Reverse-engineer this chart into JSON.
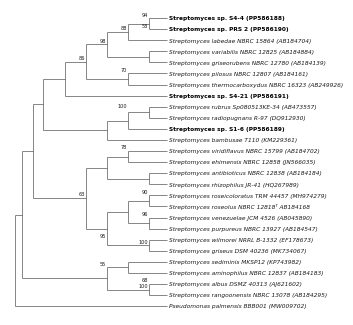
{
  "taxa": [
    {
      "name": "Streptomyces sp. S4-4 (PP586188)",
      "bold": true,
      "y": 1
    },
    {
      "name": "Streptomyces sp. PRS 2 (PP586190)",
      "bold": true,
      "y": 2
    },
    {
      "name": "Streptomyces labedae NBRC 15864 (AB184704)",
      "bold": false,
      "y": 3
    },
    {
      "name": "Streptomyces variabilis NBRC 12825 (AB184884)",
      "bold": false,
      "y": 4
    },
    {
      "name": "Streptomyces griseorubens NBRC 12780 (AB184139)",
      "bold": false,
      "y": 5
    },
    {
      "name": "Streptomyces pilosus NBRC 12807 (AB184161)",
      "bold": false,
      "y": 6
    },
    {
      "name": "Streptomyces thermocarboxydus NBRC 16323 (AB249926)",
      "bold": false,
      "y": 7
    },
    {
      "name": "Streptomyces sp. S4-21 (PP586191)",
      "bold": true,
      "y": 8
    },
    {
      "name": "Streptomyces rubrus Sp080513KE-34 (AB473557)",
      "bold": false,
      "y": 9
    },
    {
      "name": "Streptomyces radiopugnans R-97 (DQ912930)",
      "bold": false,
      "y": 10
    },
    {
      "name": "Streptomyces sp. S1-6 (PP586189)",
      "bold": true,
      "y": 11
    },
    {
      "name": "Streptomyces bambusae T110 (KM229361)",
      "bold": false,
      "y": 12
    },
    {
      "name": "Streptomyces viridiflavus NBRC 15799 (AB184702)",
      "bold": false,
      "y": 13
    },
    {
      "name": "Streptomyces ehimensis NBRC 12858 (JN566035)",
      "bold": false,
      "y": 14
    },
    {
      "name": "Streptomyces antibioticus NBRC 12838 (AB184184)",
      "bold": false,
      "y": 15
    },
    {
      "name": "Streptomyces rhizophilus JR-41 (HQ267989)",
      "bold": false,
      "y": 16
    },
    {
      "name": "Streptomyces roseicoloratus TRM 44457 (MH974279)",
      "bold": false,
      "y": 17
    },
    {
      "name": "Streptomyces roseolus NBRC 12818ᵀ AB184168",
      "bold": false,
      "y": 18
    },
    {
      "name": "Streptomyces venezuelae JCM 4526 (AB045890)",
      "bold": false,
      "y": 19
    },
    {
      "name": "Streptomyces purpureus NBRC 13927 (AB184547)",
      "bold": false,
      "y": 20
    },
    {
      "name": "Streptomyces wilmorei NRRL B-1332 (EF178673)",
      "bold": false,
      "y": 21
    },
    {
      "name": "Streptomyces griseus DSM 40236 (MK734067)",
      "bold": false,
      "y": 22
    },
    {
      "name": "Streptomyces sediminis MKSP12 (KP743982)",
      "bold": false,
      "y": 23
    },
    {
      "name": "Streptomyces aminophilus NBRC 12837 (AB184183)",
      "bold": false,
      "y": 24
    },
    {
      "name": "Streptomyces albus DSMZ 40313 (AJ621602)",
      "bold": false,
      "y": 25
    },
    {
      "name": "Streptomyces rangoonensis NBRC 13078 (AB184295)",
      "bold": false,
      "y": 26
    },
    {
      "name": "Pseudomonas palmensis BBB001 (MW009702)",
      "bold": false,
      "y": 27
    }
  ],
  "bg_color": "#ffffff",
  "line_color": "#555555",
  "text_color": "#1a1a1a",
  "bold_color": "#000000",
  "label_fontsize": 4.2,
  "bootstrap_fontsize": 3.6
}
